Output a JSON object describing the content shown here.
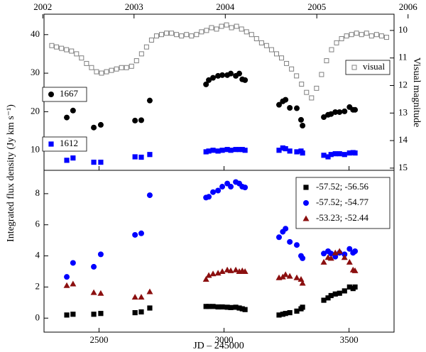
{
  "chart_data": [
    {
      "type": "scatter",
      "ylabel": "Integrated flux density (Jy km s⁻¹)",
      "y2label": "Visual magnitude",
      "xlim": [
        2280,
        3680
      ],
      "ylim": [
        4.8,
        45.3
      ],
      "yticks": [
        10,
        20,
        30,
        40
      ],
      "y2lim": [
        15.08,
        9.41
      ],
      "y2ticks": [
        10,
        11,
        12,
        13,
        14,
        15
      ],
      "x2ticks": [
        {
          "value": 2275,
          "label": "2002"
        },
        {
          "value": 2640,
          "label": "2003"
        },
        {
          "value": 3005,
          "label": "2004"
        },
        {
          "value": 3371,
          "label": "2005"
        },
        {
          "value": 3736,
          "label": "2006"
        }
      ],
      "x": [
        2371,
        2396,
        2479,
        2507,
        2644,
        2669,
        2703,
        2928,
        2939,
        2956,
        2976,
        2993,
        3013,
        3027,
        3047,
        3061,
        3073,
        3084,
        3220,
        3235,
        3246,
        3263,
        3291,
        3308,
        3314,
        3399,
        3416,
        3428,
        3445,
        3462,
        3482,
        3502,
        3516,
        3524
      ],
      "series": [
        {
          "name": "1667",
          "color": "#000000",
          "marker": "circle",
          "values": [
            18.5,
            20.3,
            15.9,
            16.6,
            17.7,
            17.8,
            22.9,
            27.1,
            28.2,
            28.8,
            29.3,
            29.5,
            29.5,
            29.9,
            29.3,
            29.9,
            28.4,
            28.2,
            21.8,
            22.7,
            23.1,
            21.0,
            20.9,
            17.9,
            16.4,
            18.6,
            19.2,
            19.4,
            19.9,
            19.9,
            20.1,
            21.2,
            20.5,
            20.5
          ]
        },
        {
          "name": "1612",
          "color": "#0000ff",
          "marker": "square",
          "values": [
            7.4,
            8.0,
            6.9,
            6.9,
            8.3,
            8.2,
            8.9,
            9.6,
            9.8,
            10.0,
            9.8,
            10.0,
            10.2,
            10.0,
            10.2,
            10.2,
            10.2,
            10.0,
            10.0,
            10.6,
            10.4,
            9.8,
            9.6,
            9.8,
            9.3,
            8.7,
            8.3,
            8.9,
            9.1,
            9.1,
            8.9,
            9.3,
            9.4,
            9.3
          ]
        },
        {
          "name": "visual",
          "color": "#808080",
          "marker": "open-square",
          "axis": "y2",
          "x": [
            2311,
            2330,
            2350,
            2370,
            2390,
            2410,
            2430,
            2450,
            2470,
            2490,
            2510,
            2530,
            2550,
            2570,
            2590,
            2610,
            2630,
            2650,
            2670,
            2690,
            2710,
            2730,
            2750,
            2770,
            2790,
            2810,
            2830,
            2850,
            2870,
            2890,
            2910,
            2930,
            2950,
            2970,
            2990,
            3010,
            3030,
            3050,
            3070,
            3090,
            3110,
            3130,
            3150,
            3170,
            3190,
            3210,
            3230,
            3250,
            3270,
            3290,
            3310,
            3330,
            3350,
            3370,
            3390,
            3410,
            3430,
            3450,
            3470,
            3490,
            3510,
            3530,
            3550,
            3570,
            3590,
            3610,
            3630,
            3650
          ],
          "values": [
            10.55,
            10.6,
            10.65,
            10.7,
            10.75,
            10.85,
            11.0,
            11.2,
            11.35,
            11.5,
            11.55,
            11.5,
            11.45,
            11.4,
            11.35,
            11.35,
            11.3,
            11.1,
            10.85,
            10.6,
            10.35,
            10.2,
            10.15,
            10.1,
            10.1,
            10.15,
            10.2,
            10.15,
            10.2,
            10.15,
            10.05,
            10.0,
            9.9,
            9.95,
            9.85,
            9.8,
            9.9,
            9.85,
            9.95,
            10.05,
            10.15,
            10.3,
            10.45,
            10.55,
            10.7,
            10.85,
            11.0,
            11.2,
            11.4,
            11.65,
            11.95,
            12.25,
            12.45,
            12.1,
            11.6,
            11.1,
            10.7,
            10.45,
            10.3,
            10.2,
            10.15,
            10.1,
            10.15,
            10.1,
            10.2,
            10.15,
            10.2,
            10.25
          ]
        }
      ]
    },
    {
      "type": "scatter",
      "xlabel": "JD – 245000",
      "xlim": [
        2280,
        3680
      ],
      "ylim": [
        -0.9,
        9.5
      ],
      "xticks": [
        2500,
        3000,
        3500
      ],
      "yticks": [
        0,
        2,
        4,
        6,
        8
      ],
      "legend": "upper right",
      "x": [
        2371,
        2396,
        2479,
        2507,
        2644,
        2669,
        2703,
        2928,
        2939,
        2956,
        2976,
        2993,
        3013,
        3027,
        3047,
        3061,
        3073,
        3084,
        3220,
        3235,
        3246,
        3263,
        3291,
        3308,
        3314,
        3399,
        3416,
        3428,
        3445,
        3462,
        3482,
        3502,
        3516,
        3524
      ],
      "series": [
        {
          "name": "-57.52; -56.56",
          "color": "#000000",
          "marker": "square",
          "values": [
            0.2,
            0.25,
            0.25,
            0.3,
            0.35,
            0.4,
            0.65,
            0.75,
            0.75,
            0.75,
            0.72,
            0.72,
            0.7,
            0.68,
            0.7,
            0.65,
            0.6,
            0.55,
            0.2,
            0.25,
            0.3,
            0.35,
            0.45,
            0.6,
            0.7,
            1.15,
            1.3,
            1.45,
            1.55,
            1.6,
            1.75,
            2.0,
            1.9,
            2.0
          ]
        },
        {
          "name": "-57.52; -54.77",
          "color": "#0000ff",
          "marker": "circle",
          "values": [
            2.65,
            3.55,
            3.3,
            4.1,
            5.35,
            5.45,
            7.9,
            7.75,
            7.8,
            8.1,
            8.2,
            8.45,
            8.65,
            8.45,
            8.75,
            8.65,
            8.45,
            8.4,
            5.2,
            5.55,
            5.75,
            4.9,
            4.7,
            4.0,
            3.85,
            4.15,
            4.3,
            4.15,
            3.95,
            4.2,
            4.1,
            4.45,
            4.2,
            4.3
          ]
        },
        {
          "name": "-53.23; -52.44",
          "color": "#8b0f0f",
          "marker": "triangle",
          "values": [
            2.1,
            2.2,
            1.65,
            1.6,
            1.35,
            1.35,
            1.7,
            2.5,
            2.75,
            2.85,
            2.9,
            3.0,
            3.1,
            3.05,
            3.1,
            3.0,
            3.05,
            3.0,
            2.6,
            2.65,
            2.8,
            2.7,
            2.6,
            2.5,
            2.25,
            3.6,
            3.9,
            3.85,
            4.2,
            4.3,
            3.9,
            3.6,
            3.1,
            3.05
          ]
        }
      ]
    }
  ]
}
